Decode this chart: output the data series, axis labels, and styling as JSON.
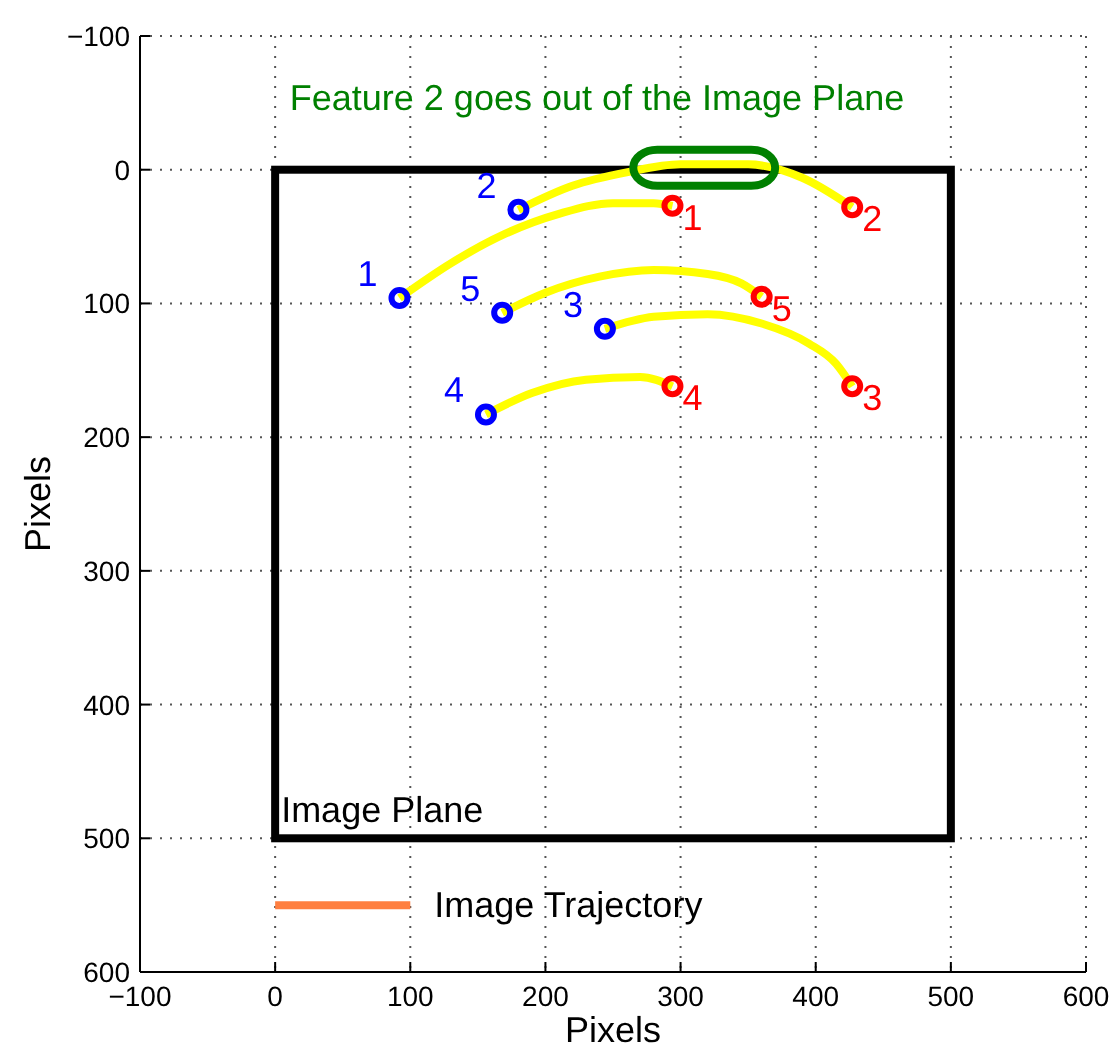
{
  "chart_data": {
    "type": "line",
    "xlabel": "Pixels",
    "ylabel": "Pixels",
    "xlim": [
      -100,
      600
    ],
    "ylim": [
      600,
      -100
    ],
    "xticks": [
      {
        "value": -100,
        "label": "−100"
      },
      0,
      100,
      200,
      300,
      400,
      500,
      600
    ],
    "yticks": [
      {
        "value": -100,
        "label": "−100"
      },
      0,
      100,
      200,
      300,
      400,
      500,
      600
    ],
    "grid": true,
    "legend": false,
    "annotations": [
      "Feature 2 goes out of the Image Plane",
      "Image Plane",
      {
        "text": "1",
        "x": 92,
        "y": 96
      },
      {
        "text": "2",
        "x": 180,
        "y": 30
      },
      {
        "text": "3",
        "x": 244,
        "y": 119
      },
      {
        "text": "4",
        "x": 156,
        "y": 183
      },
      {
        "text": "5",
        "x": 168,
        "y": 107
      },
      {
        "text": "1",
        "x": 294,
        "y": 27
      },
      {
        "text": "2",
        "x": 427,
        "y": 28
      },
      {
        "text": "3",
        "x": 427,
        "y": 162
      },
      {
        "text": "4",
        "x": 294,
        "y": 162
      },
      {
        "text": "5",
        "x": 360,
        "y": 95
      }
    ],
    "series": [
      {
        "color": "#ffff00",
        "x": [
          92,
          130,
          170,
          210,
          250,
          280,
          294
        ],
        "values": [
          96,
          70,
          48,
          33,
          25,
          25,
          27
        ]
      },
      {
        "color": "#ffff00",
        "x": [
          180,
          220,
          260,
          300,
          350,
          390,
          427
        ],
        "values": [
          30,
          12,
          2,
          -4,
          -4,
          6,
          28
        ]
      },
      {
        "color": "#ffff00",
        "x": [
          244,
          280,
          320,
          360,
          395,
          415,
          427
        ],
        "values": [
          119,
          110,
          108,
          115,
          130,
          145,
          162
        ]
      },
      {
        "color": "#ffff00",
        "x": [
          156,
          190,
          230,
          270,
          294
        ],
        "values": [
          183,
          167,
          157,
          155,
          162
        ]
      },
      {
        "color": "#ffff00",
        "x": [
          168,
          200,
          240,
          280,
          320,
          345,
          360
        ],
        "values": [
          107,
          92,
          80,
          75,
          78,
          85,
          95
        ]
      },
      {
        "type": "scatter",
        "marker": "circle",
        "color": "#0000ff",
        "x": [
          92,
          180,
          244,
          156,
          168
        ],
        "values": [
          96,
          30,
          119,
          183,
          107
        ]
      },
      {
        "type": "scatter",
        "marker": "circle",
        "color": "#ff0000",
        "x": [
          294,
          427,
          427,
          294,
          360
        ],
        "values": [
          27,
          28,
          162,
          162,
          95
        ]
      },
      {
        "name": "Image Trajectory",
        "color": "#ff7f40",
        "x": [
          0,
          100
        ],
        "values": [
          550,
          550
        ]
      }
    ]
  }
}
